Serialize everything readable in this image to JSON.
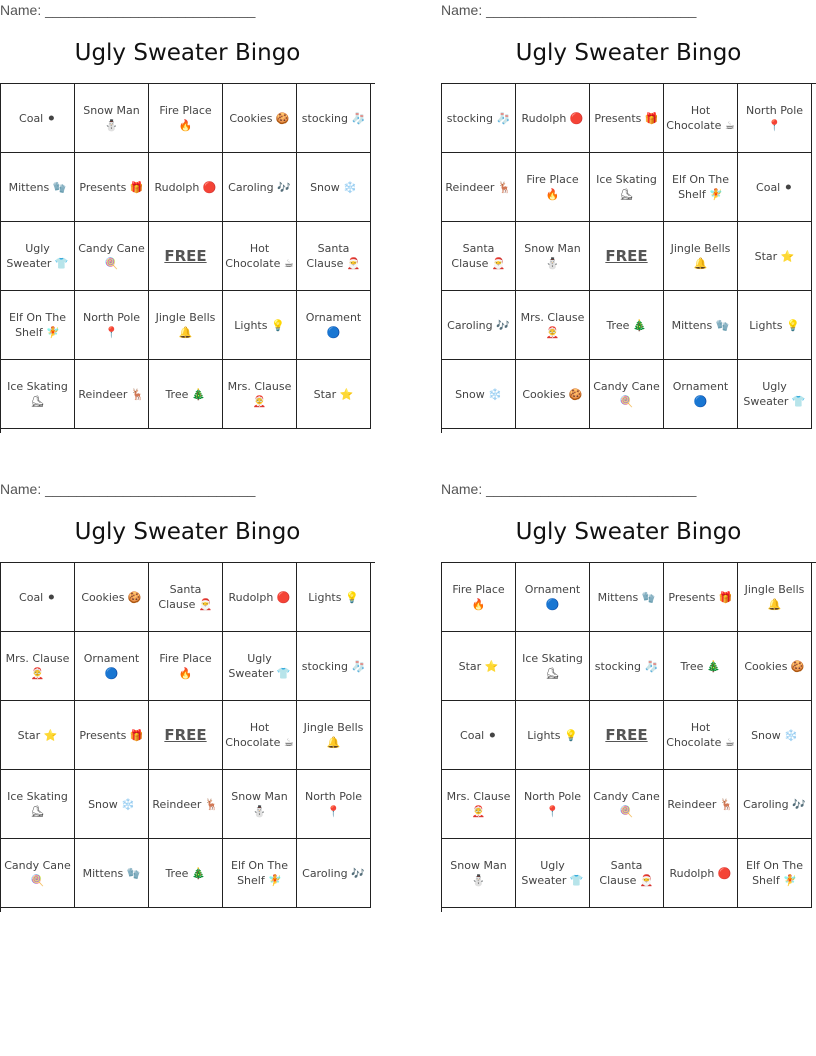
{
  "cards": [
    {
      "name_label": "Name: ___________________________",
      "title": "Ugly Sweater Bingo",
      "grid": [
        [
          "Coal ⚫",
          "Snow Man ⛄",
          "Fire Place 🔥",
          "Cookies 🍪",
          "stocking 🧦"
        ],
        [
          "Mittens 🧤",
          "Presents 🎁",
          "Rudolph 🔴",
          "Caroling 🎶",
          "Snow ❄️"
        ],
        [
          "Ugly Sweater 👕",
          "Candy Cane 🍭",
          "FREE",
          "Hot Chocolate ☕",
          "Santa Clause 🎅"
        ],
        [
          "Elf On The Shelf 🧚",
          "North Pole 📍",
          "Jingle Bells 🔔",
          "Lights 💡",
          "Ornament 🔵"
        ],
        [
          "Ice Skating ⛸",
          "Reindeer 🦌",
          "Tree 🎄",
          "Mrs. Clause 🤶",
          "Star ⭐"
        ]
      ]
    },
    {
      "name_label": "Name: ___________________________",
      "title": "Ugly Sweater Bingo",
      "grid": [
        [
          "stocking 🧦",
          "Rudolph 🔴",
          "Presents 🎁",
          "Hot Chocolate ☕",
          "North Pole 📍"
        ],
        [
          "Reindeer 🦌",
          "Fire Place 🔥",
          "Ice Skating ⛸",
          "Elf On The Shelf 🧚",
          "Coal ⚫"
        ],
        [
          "Santa Clause 🎅",
          "Snow Man ⛄",
          "FREE",
          "Jingle Bells 🔔",
          "Star ⭐"
        ],
        [
          "Caroling 🎶",
          "Mrs. Clause 🤶",
          "Tree 🎄",
          "Mittens 🧤",
          "Lights 💡"
        ],
        [
          "Snow ❄️",
          "Cookies 🍪",
          "Candy Cane 🍭",
          "Ornament 🔵",
          "Ugly Sweater 👕"
        ]
      ]
    },
    {
      "name_label": "Name: ___________________________",
      "title": "Ugly Sweater Bingo",
      "grid": [
        [
          "Coal ⚫",
          "Cookies 🍪",
          "Santa Clause 🎅",
          "Rudolph 🔴",
          "Lights 💡"
        ],
        [
          "Mrs. Clause 🤶",
          "Ornament 🔵",
          "Fire Place 🔥",
          "Ugly Sweater 👕",
          "stocking 🧦"
        ],
        [
          "Star ⭐",
          "Presents 🎁",
          "FREE",
          "Hot Chocolate ☕",
          "Jingle Bells 🔔"
        ],
        [
          "Ice Skating ⛸",
          "Snow ❄️",
          "Reindeer 🦌",
          "Snow Man ⛄",
          "North Pole 📍"
        ],
        [
          "Candy Cane 🍭",
          "Mittens 🧤",
          "Tree 🎄",
          "Elf On The Shelf 🧚",
          "Caroling 🎶"
        ]
      ]
    },
    {
      "name_label": "Name: ___________________________",
      "title": "Ugly Sweater Bingo",
      "grid": [
        [
          "Fire Place 🔥",
          "Ornament 🔵",
          "Mittens 🧤",
          "Presents 🎁",
          "Jingle Bells 🔔"
        ],
        [
          "Star ⭐",
          "Ice Skating ⛸",
          "stocking 🧦",
          "Tree 🎄",
          "Cookies 🍪"
        ],
        [
          "Coal ⚫",
          "Lights 💡",
          "FREE",
          "Hot Chocolate ☕",
          "Snow ❄️"
        ],
        [
          "Mrs. Clause 🤶",
          "North Pole 📍",
          "Candy Cane 🍭",
          "Reindeer 🦌",
          "Caroling 🎶"
        ],
        [
          "Snow Man ⛄",
          "Ugly Sweater 👕",
          "Santa Clause 🎅",
          "Rudolph 🔴",
          "Elf On The Shelf 🧚"
        ]
      ]
    }
  ]
}
